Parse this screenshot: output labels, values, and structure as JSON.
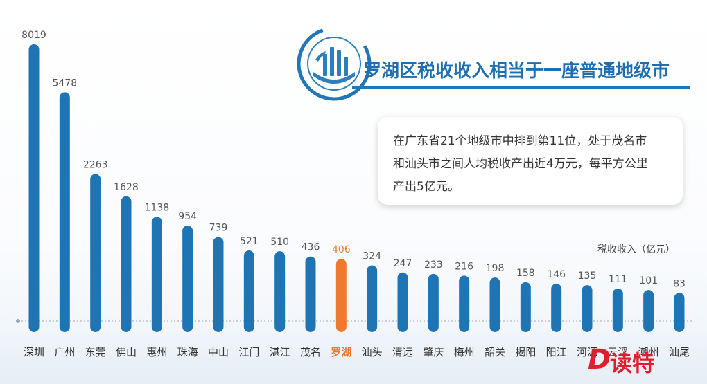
{
  "title": "罗湖区税收收入相当于一座普通地级市",
  "info_lines": [
    "在广东省21个地级市中排到第11位，处于茂名市",
    "和汕头市之间人均税收产出近4万元，每平方公里",
    "产出5亿元。"
  ],
  "unit_label": "税收收入（亿元）",
  "logo_mark": "D",
  "logo_text": "读特",
  "colors": {
    "bar": "#1f75b4",
    "highlight": "#ef7a2f",
    "label": "#555555",
    "highlight_label": "#ef7a2f",
    "title": "#1e6fb0"
  },
  "chart_data": {
    "type": "bar",
    "title": "罗湖区税收收入相当于一座普通地级市",
    "xlabel": "",
    "ylabel": "税收收入（亿元）",
    "ylim": [
      0,
      8019
    ],
    "categories": [
      "深圳",
      "广州",
      "东莞",
      "佛山",
      "惠州",
      "珠海",
      "中山",
      "江门",
      "湛江",
      "茂名",
      "罗湖",
      "汕头",
      "清远",
      "肇庆",
      "梅州",
      "韶关",
      "揭阳",
      "阳江",
      "河源",
      "云浮",
      "潮州",
      "汕尾"
    ],
    "values": [
      8019,
      5478,
      2263,
      1628,
      1138,
      954,
      739,
      521,
      510,
      436,
      406,
      324,
      247,
      233,
      216,
      198,
      158,
      146,
      135,
      111,
      101,
      83
    ],
    "highlight": "罗湖",
    "grid": false,
    "legend": "none"
  }
}
